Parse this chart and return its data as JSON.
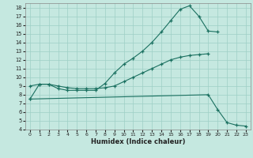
{
  "xlabel": "Humidex (Indice chaleur)",
  "bg_color": "#c5e8e0",
  "grid_color": "#9ecfc5",
  "line_color": "#1a7060",
  "xlim": [
    -0.5,
    23.5
  ],
  "ylim": [
    4,
    18.5
  ],
  "xticks": [
    0,
    1,
    2,
    3,
    4,
    5,
    6,
    7,
    8,
    9,
    10,
    11,
    12,
    13,
    14,
    15,
    16,
    17,
    18,
    19,
    20,
    21,
    22,
    23
  ],
  "yticks": [
    4,
    5,
    6,
    7,
    8,
    9,
    10,
    11,
    12,
    13,
    14,
    15,
    16,
    17,
    18
  ],
  "curve1_x": [
    0,
    1,
    2,
    3,
    4,
    5,
    6,
    7,
    8,
    9,
    10,
    11,
    12,
    13,
    14,
    15,
    16,
    17,
    18,
    19,
    20
  ],
  "curve1_y": [
    7.5,
    9.2,
    9.2,
    8.7,
    8.5,
    8.5,
    8.5,
    8.5,
    9.3,
    10.5,
    11.5,
    12.2,
    13.0,
    14.0,
    15.2,
    16.5,
    17.8,
    18.2,
    17.0,
    15.3,
    15.2
  ],
  "curve2_x": [
    0,
    1,
    2,
    3,
    4,
    5,
    6,
    7,
    8,
    9,
    10,
    11,
    12,
    13,
    14,
    15,
    16,
    17,
    18,
    19
  ],
  "curve2_y": [
    9.0,
    9.2,
    9.2,
    9.0,
    8.8,
    8.7,
    8.7,
    8.7,
    8.8,
    9.0,
    9.5,
    10.0,
    10.5,
    11.0,
    11.5,
    12.0,
    12.3,
    12.5,
    12.6,
    12.7
  ],
  "curve3_x": [
    0,
    19,
    20,
    21,
    22,
    23
  ],
  "curve3_y": [
    7.5,
    8.0,
    6.3,
    4.8,
    4.5,
    4.4
  ]
}
